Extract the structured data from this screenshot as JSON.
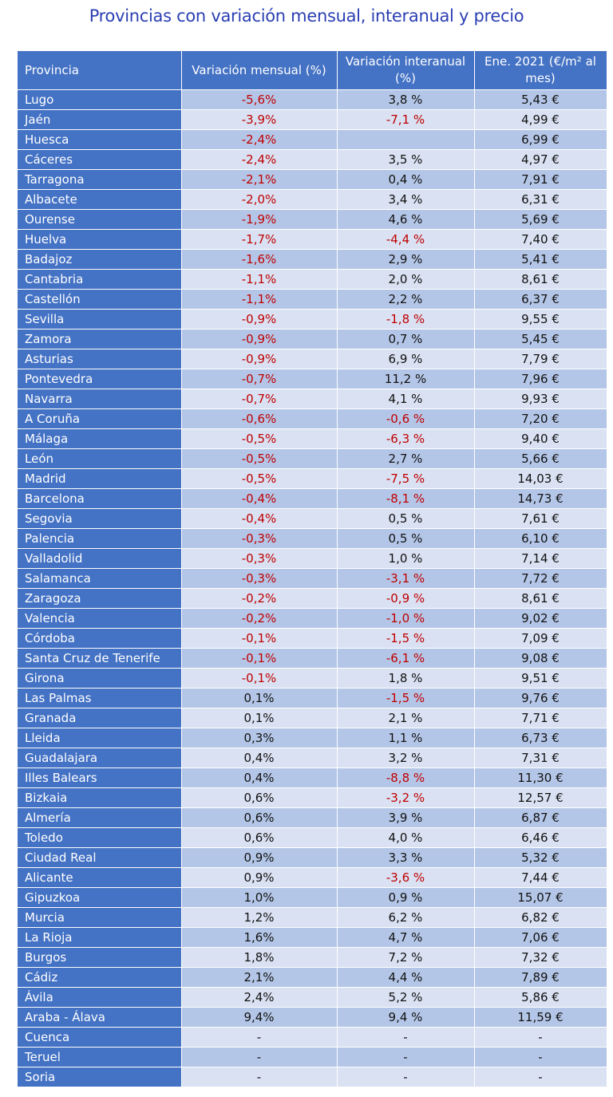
{
  "title": "Provincias con variación mensual, interanual y precio",
  "headers": [
    "Provincia",
    "Variación mensual (%)",
    "Variación interanual (%)",
    "Ene. 2021 (€/m² al mes)"
  ],
  "colors": {
    "header_bg": "#4472c4",
    "row_odd": "#b4c6e7",
    "row_even": "#d9e1f2",
    "negative": "#c00000",
    "title": "#2b3fb3"
  },
  "rows": [
    [
      "Lugo",
      "-5,6%",
      "3,8 %",
      "5,43 €"
    ],
    [
      "Jaén",
      "-3,9%",
      "-7,1 %",
      "4,99 €"
    ],
    [
      "Huesca",
      "-2,4%",
      "",
      "6,99 €"
    ],
    [
      "Cáceres",
      "-2,4%",
      "3,5 %",
      "4,97 €"
    ],
    [
      "Tarragona",
      "-2,1%",
      "0,4 %",
      "7,91 €"
    ],
    [
      "Albacete",
      "-2,0%",
      "3,4 %",
      "6,31 €"
    ],
    [
      "Ourense",
      "-1,9%",
      "4,6 %",
      "5,69 €"
    ],
    [
      "Huelva",
      "-1,7%",
      "-4,4 %",
      "7,40 €"
    ],
    [
      "Badajoz",
      "-1,6%",
      "2,9 %",
      "5,41 €"
    ],
    [
      "Cantabria",
      "-1,1%",
      "2,0 %",
      "8,61 €"
    ],
    [
      "Castellón",
      "-1,1%",
      "2,2 %",
      "6,37 €"
    ],
    [
      "Sevilla",
      "-0,9%",
      "-1,8 %",
      "9,55 €"
    ],
    [
      "Zamora",
      "-0,9%",
      "0,7 %",
      "5,45 €"
    ],
    [
      "Asturias",
      "-0,9%",
      "6,9 %",
      "7,79 €"
    ],
    [
      "Pontevedra",
      "-0,7%",
      "11,2 %",
      "7,96 €"
    ],
    [
      "Navarra",
      "-0,7%",
      "4,1 %",
      "9,93 €"
    ],
    [
      "A Coruña",
      "-0,6%",
      "-0,6 %",
      "7,20 €"
    ],
    [
      "Málaga",
      "-0,5%",
      "-6,3 %",
      "9,40 €"
    ],
    [
      "León",
      "-0,5%",
      "2,7 %",
      "5,66 €"
    ],
    [
      "Madrid",
      "-0,5%",
      "-7,5 %",
      "14,03 €"
    ],
    [
      "Barcelona",
      "-0,4%",
      "-8,1 %",
      "14,73 €"
    ],
    [
      "Segovia",
      "-0,4%",
      "0,5 %",
      "7,61 €"
    ],
    [
      "Palencia",
      "-0,3%",
      "0,5 %",
      "6,10 €"
    ],
    [
      "Valladolid",
      "-0,3%",
      "1,0 %",
      "7,14 €"
    ],
    [
      "Salamanca",
      "-0,3%",
      "-3,1 %",
      "7,72 €"
    ],
    [
      "Zaragoza",
      "-0,2%",
      "-0,9 %",
      "8,61 €"
    ],
    [
      "Valencia",
      "-0,2%",
      "-1,0 %",
      "9,02 €"
    ],
    [
      "Córdoba",
      "-0,1%",
      "-1,5 %",
      "7,09 €"
    ],
    [
      "Santa Cruz de Tenerife",
      "-0,1%",
      "-6,1 %",
      "9,08 €"
    ],
    [
      "Girona",
      "-0,1%",
      "1,8 %",
      "9,51 €"
    ],
    [
      "Las Palmas",
      "0,1%",
      "-1,5 %",
      "9,76 €"
    ],
    [
      "Granada",
      "0,1%",
      "2,1 %",
      "7,71 €"
    ],
    [
      "Lleida",
      "0,3%",
      "1,1 %",
      "6,73 €"
    ],
    [
      "Guadalajara",
      "0,4%",
      "3,2 %",
      "7,31 €"
    ],
    [
      "Illes Balears",
      "0,4%",
      "-8,8 %",
      "11,30 €"
    ],
    [
      "Bizkaia",
      "0,6%",
      "-3,2 %",
      "12,57 €"
    ],
    [
      "Almería",
      "0,6%",
      "3,9 %",
      "6,87 €"
    ],
    [
      "Toledo",
      "0,6%",
      "4,0 %",
      "6,46 €"
    ],
    [
      "Ciudad Real",
      "0,9%",
      "3,3 %",
      "5,32 €"
    ],
    [
      "Alicante",
      "0,9%",
      "-3,6 %",
      "7,44 €"
    ],
    [
      "Gipuzkoa",
      "1,0%",
      "0,9 %",
      "15,07 €"
    ],
    [
      "Murcia",
      "1,2%",
      "6,2 %",
      "6,82 €"
    ],
    [
      "La Rioja",
      "1,6%",
      "4,7 %",
      "7,06 €"
    ],
    [
      "Burgos",
      "1,8%",
      "7,2 %",
      "7,32 €"
    ],
    [
      "Cádiz",
      "2,1%",
      "4,4 %",
      "7,89 €"
    ],
    [
      "Ávila",
      "2,4%",
      "5,2 %",
      "5,86 €"
    ],
    [
      "Araba - Álava",
      "9,4%",
      "9,4 %",
      "11,59 €"
    ],
    [
      "Cuenca",
      "-",
      "-",
      "-"
    ],
    [
      "Teruel",
      "-",
      "-",
      "-"
    ],
    [
      "Soria",
      "-",
      "-",
      "-"
    ]
  ]
}
